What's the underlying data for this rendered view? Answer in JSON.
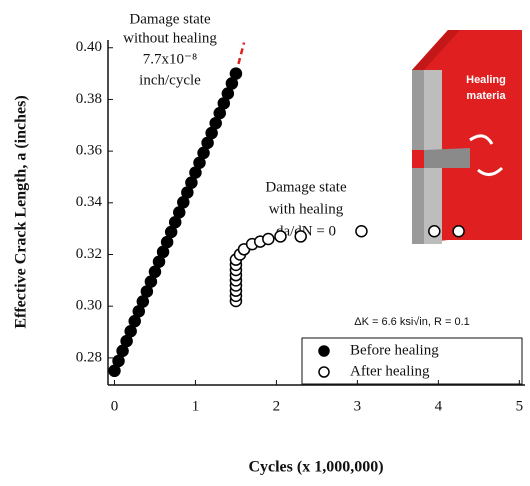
{
  "chart_data": {
    "type": "scatter",
    "xlabel": "Cycles (x 1,000,000)",
    "ylabel": "Effective Crack Length, a (inches)",
    "xlim": [
      -0.08,
      5.07
    ],
    "ylim": [
      0.2695,
      0.403
    ],
    "xticks": [
      0,
      1,
      2,
      3,
      4,
      5
    ],
    "yticks": [
      {
        "value": 0.28,
        "label": "0.28"
      },
      {
        "value": 0.3,
        "label": "0.30"
      },
      0.32,
      0.34,
      0.36,
      0.38,
      {
        "value": 0.4,
        "label": "0.40"
      }
    ],
    "legend": "lower right",
    "series": [
      {
        "name": "Before healing",
        "color": "#000000",
        "filled": true,
        "x": [
          0,
          0.05,
          0.1,
          0.15,
          0.2,
          0.25,
          0.3,
          0.35,
          0.4,
          0.45,
          0.5,
          0.55,
          0.6,
          0.65,
          0.7,
          0.75,
          0.8,
          0.85,
          0.9,
          0.95,
          1,
          1.05,
          1.1,
          1.15,
          1.2,
          1.25,
          1.3,
          1.35,
          1.4,
          1.45,
          1.5
        ],
        "values": [
          0.275,
          0.2788,
          0.2827,
          0.2865,
          0.2903,
          0.2942,
          0.298,
          0.3018,
          0.3057,
          0.3095,
          0.3133,
          0.3172,
          0.321,
          0.3248,
          0.3287,
          0.3325,
          0.3363,
          0.3402,
          0.344,
          0.3478,
          0.3517,
          0.3555,
          0.3593,
          0.3632,
          0.367,
          0.3708,
          0.3747,
          0.3785,
          0.3823,
          0.3862,
          0.39
        ]
      },
      {
        "name": "After healing",
        "color": "#000000",
        "filled": false,
        "x": [
          1.5,
          1.5,
          1.5,
          1.5,
          1.5,
          1.5,
          1.5,
          1.5,
          1.5,
          1.55,
          1.6,
          1.7,
          1.8,
          1.9,
          2.05,
          2.3,
          3.05,
          3.95,
          4.25
        ],
        "values": [
          0.302,
          0.304,
          0.306,
          0.308,
          0.31,
          0.312,
          0.314,
          0.316,
          0.318,
          0.32,
          0.322,
          0.324,
          0.325,
          0.326,
          0.327,
          0.327,
          0.329,
          0.329,
          0.329
        ]
      }
    ],
    "trend_line": {
      "x": [
        1.5,
        1.6
      ],
      "values": [
        0.39,
        0.402
      ],
      "color": "#e02020"
    },
    "annotations": [
      "Damage state",
      "without healing",
      "7.7x10⁻⁸",
      "inch/cycle",
      "Damage state",
      "with healing",
      "da/dN = 0",
      "ΔK = 6.6 ksi√in, R = 0.1"
    ],
    "inset_labels": [
      "Healing",
      "materia"
    ]
  }
}
